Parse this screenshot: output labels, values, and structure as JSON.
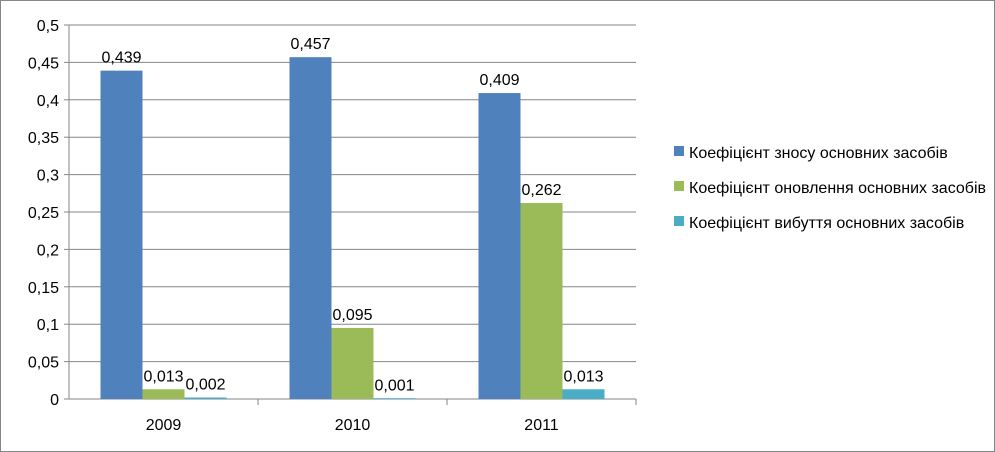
{
  "chart_data": {
    "type": "bar",
    "categories": [
      "2009",
      "2010",
      "2011"
    ],
    "series": [
      {
        "name": "Коефіцієнт зносу основних засобів",
        "values": [
          0.439,
          0.457,
          0.409
        ],
        "labels": [
          "0,439",
          "0,457",
          "0,409"
        ],
        "color": "#4f81bd"
      },
      {
        "name": "Коефіцієнт оновлення основних засобів",
        "values": [
          0.013,
          0.095,
          0.262
        ],
        "labels": [
          "0,013",
          "0,095",
          "0,262"
        ],
        "color": "#9bbb59"
      },
      {
        "name": "Коефіцієнт вибуття основних засобів",
        "values": [
          0.002,
          0.001,
          0.013
        ],
        "labels": [
          "0,002",
          "0,001",
          "0,013"
        ],
        "color": "#4bacc6"
      }
    ],
    "ylim": [
      0,
      0.5
    ],
    "yticks": [
      0,
      0.05,
      0.1,
      0.15,
      0.2,
      0.25,
      0.3,
      0.35,
      0.4,
      0.45,
      0.5
    ],
    "ytick_labels": [
      "0",
      "0,05",
      "0,1",
      "0,15",
      "0,2",
      "0,25",
      "0,3",
      "0,35",
      "0,4",
      "0,45",
      "0,5"
    ],
    "grid": true,
    "legend": "right",
    "title": "",
    "xlabel": "",
    "ylabel": ""
  }
}
